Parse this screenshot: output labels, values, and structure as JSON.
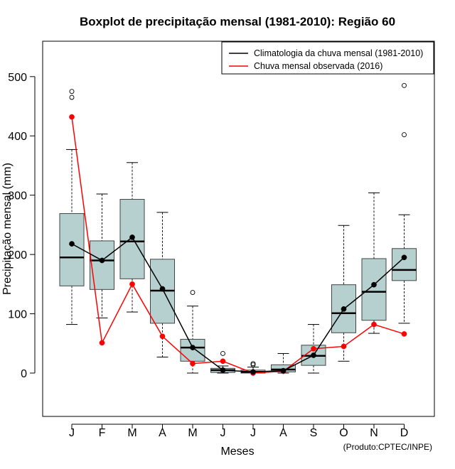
{
  "chart_data": {
    "type": "boxplot",
    "title": "Boxplot de precipitação mensal (1981-2010): Região 60",
    "xlabel": "Meses",
    "ylabel": "Precipitação mensal (mm)",
    "ylim": [
      -73,
      555
    ],
    "yticks": [
      0,
      100,
      200,
      300,
      400,
      500
    ],
    "categories": [
      "J",
      "F",
      "M",
      "A",
      "M",
      "J",
      "J",
      "A",
      "S",
      "O",
      "N",
      "D"
    ],
    "boxes": [
      {
        "whisker_low": 82,
        "q1": 147,
        "median": 195,
        "q3": 269,
        "whisker_high": 377,
        "outliers": [
          465,
          475
        ]
      },
      {
        "whisker_low": 93,
        "q1": 141,
        "median": 190,
        "q3": 223,
        "whisker_high": 302,
        "outliers": []
      },
      {
        "whisker_low": 103,
        "q1": 159,
        "median": 222,
        "q3": 293,
        "whisker_high": 355,
        "outliers": []
      },
      {
        "whisker_low": 27,
        "q1": 84,
        "median": 139,
        "q3": 192,
        "whisker_high": 271,
        "outliers": []
      },
      {
        "whisker_low": 0,
        "q1": 20,
        "median": 43,
        "q3": 57,
        "whisker_high": 113,
        "outliers": [
          136
        ]
      },
      {
        "whisker_low": 0,
        "q1": 1,
        "median": 5,
        "q3": 8,
        "whisker_high": 12,
        "outliers": [
          33
        ]
      },
      {
        "whisker_low": 0,
        "q1": 0,
        "median": 2,
        "q3": 5,
        "whisker_high": 10,
        "outliers": [
          14,
          16
        ]
      },
      {
        "whisker_low": 0,
        "q1": 2,
        "median": 6,
        "q3": 14,
        "whisker_high": 33,
        "outliers": []
      },
      {
        "whisker_low": 0,
        "q1": 13,
        "median": 29,
        "q3": 47,
        "whisker_high": 82,
        "outliers": []
      },
      {
        "whisker_low": 20,
        "q1": 68,
        "median": 101,
        "q3": 149,
        "whisker_high": 249,
        "outliers": []
      },
      {
        "whisker_low": 67,
        "q1": 89,
        "median": 137,
        "q3": 193,
        "whisker_high": 304,
        "outliers": []
      },
      {
        "whisker_low": 84,
        "q1": 156,
        "median": 174,
        "q3": 210,
        "whisker_high": 267,
        "outliers": [
          402,
          485
        ]
      }
    ],
    "series": [
      {
        "name": "Climatologia da chuva mensal (1981-2010)",
        "color": "#000000",
        "values": [
          218,
          190,
          229,
          142,
          43,
          5,
          2,
          4,
          30,
          108,
          149,
          195
        ]
      },
      {
        "name": "Chuva mensal observada (2016)",
        "color": "#ff0000",
        "values": [
          432,
          51,
          150,
          62,
          16,
          20,
          0,
          3,
          41,
          45,
          82,
          66
        ]
      }
    ],
    "legend_position": "top-right",
    "box_fill": "#b5d0cf",
    "credit": "(Produto:CPTEC/INPE)"
  }
}
